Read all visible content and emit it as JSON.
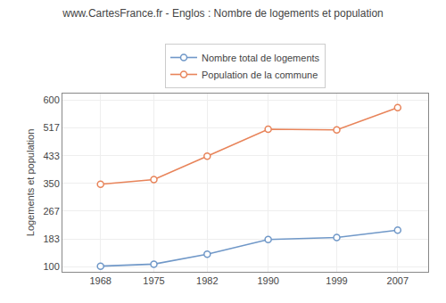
{
  "chart_data": {
    "type": "line",
    "title": "www.CartesFrance.fr - Englos : Nombre de logements et population",
    "y_label": "Logements et population",
    "x": [
      1968,
      1975,
      1982,
      1990,
      1999,
      2007
    ],
    "series": [
      {
        "name": "Nombre total de logements",
        "color": "#7098c8",
        "values": [
          102,
          108,
          138,
          182,
          188,
          210
        ]
      },
      {
        "name": "Population de la commune",
        "color": "#e8845a",
        "values": [
          348,
          362,
          432,
          513,
          511,
          578
        ]
      }
    ],
    "xlim": [
      1963,
      2011
    ],
    "xticks": [
      1968,
      1975,
      1982,
      1990,
      1999,
      2007
    ],
    "ylim": [
      85,
      620
    ],
    "yticks": [
      100,
      183,
      267,
      350,
      433,
      517,
      600
    ],
    "grid": true,
    "legend": "top",
    "marker": "circle"
  }
}
